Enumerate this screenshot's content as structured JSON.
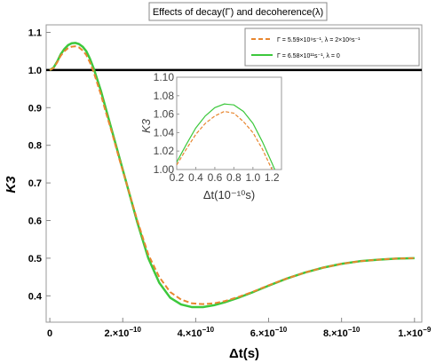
{
  "chart_data": {
    "type": "line",
    "title": "Effects of decay(Γ) and decoherence(λ)",
    "xlabel": "Δt(s)",
    "ylabel": "K3",
    "xlim": [
      -1e-11,
      1.02e-09
    ],
    "ylim": [
      0.33,
      1.12
    ],
    "x_ticks": [
      {
        "value": 0,
        "mant": "0",
        "exp": ""
      },
      {
        "value": 2e-10,
        "mant": "2.×10",
        "exp": "−10"
      },
      {
        "value": 4e-10,
        "mant": "4.×10",
        "exp": "−10"
      },
      {
        "value": 6e-10,
        "mant": "6.×10",
        "exp": "−10"
      },
      {
        "value": 8e-10,
        "mant": "8.×10",
        "exp": "−10"
      },
      {
        "value": 1e-09,
        "mant": "1.×10",
        "exp": "−9"
      }
    ],
    "y_ticks": [
      {
        "value": 0.4,
        "label": "0.4"
      },
      {
        "value": 0.5,
        "label": "0.5"
      },
      {
        "value": 0.6,
        "label": "0.6"
      },
      {
        "value": 0.7,
        "label": "0.7"
      },
      {
        "value": 0.8,
        "label": "0.8"
      },
      {
        "value": 0.9,
        "label": "0.9"
      },
      {
        "value": 1.0,
        "label": "1.0"
      },
      {
        "value": 1.1,
        "label": "1.1"
      }
    ],
    "reference_line": {
      "y": 1.0,
      "color": "#000000"
    },
    "legend_position": "top-right",
    "series": [
      {
        "name": "Γ = 5.59×10⁹s⁻¹, λ = 2×10⁸s⁻¹",
        "color": "#E8862F",
        "style": "dashed",
        "x": [
          0,
          1e-11,
          2e-11,
          3e-11,
          4e-11,
          5e-11,
          6e-11,
          7e-11,
          8e-11,
          9e-11,
          1e-10,
          1.1e-10,
          1.2e-10,
          1.3e-10,
          1.4e-10,
          1.5e-10,
          1.7e-10,
          1.9e-10,
          2.1e-10,
          2.4e-10,
          2.7e-10,
          3e-10,
          3.3e-10,
          3.6e-10,
          3.9e-10,
          4.2e-10,
          4.5e-10,
          4.8e-10,
          5.2e-10,
          5.6e-10,
          6e-10,
          6.5e-10,
          7e-10,
          7.5e-10,
          8e-10,
          8.5e-10,
          9e-10,
          9.5e-10,
          1e-09
        ],
        "values": [
          1.0,
          1.005,
          1.02,
          1.038,
          1.05,
          1.058,
          1.062,
          1.063,
          1.06,
          1.052,
          1.04,
          1.02,
          0.995,
          0.965,
          0.935,
          0.9,
          0.835,
          0.765,
          0.7,
          0.6,
          0.51,
          0.45,
          0.41,
          0.39,
          0.38,
          0.378,
          0.38,
          0.386,
          0.398,
          0.412,
          0.428,
          0.446,
          0.462,
          0.475,
          0.485,
          0.492,
          0.496,
          0.499,
          0.5
        ]
      },
      {
        "name": "Γ = 6.58×10¹¹s⁻¹, λ = 0",
        "color": "#3CC83C",
        "style": "solid",
        "x": [
          0,
          1e-11,
          2e-11,
          3e-11,
          4e-11,
          5e-11,
          6e-11,
          7e-11,
          8e-11,
          9e-11,
          1e-10,
          1.1e-10,
          1.2e-10,
          1.3e-10,
          1.4e-10,
          1.5e-10,
          1.7e-10,
          1.9e-10,
          2.1e-10,
          2.4e-10,
          2.7e-10,
          3e-10,
          3.3e-10,
          3.6e-10,
          3.9e-10,
          4.2e-10,
          4.5e-10,
          4.8e-10,
          5.2e-10,
          5.6e-10,
          6e-10,
          6.5e-10,
          7e-10,
          7.5e-10,
          8e-10,
          8.5e-10,
          9e-10,
          9.5e-10,
          1e-09
        ],
        "values": [
          1.0,
          1.006,
          1.022,
          1.042,
          1.056,
          1.066,
          1.071,
          1.072,
          1.069,
          1.062,
          1.05,
          1.03,
          1.005,
          0.975,
          0.945,
          0.91,
          0.84,
          0.77,
          0.7,
          0.595,
          0.5,
          0.435,
          0.395,
          0.377,
          0.37,
          0.37,
          0.375,
          0.383,
          0.396,
          0.411,
          0.427,
          0.446,
          0.462,
          0.475,
          0.485,
          0.492,
          0.496,
          0.499,
          0.5
        ]
      }
    ],
    "inset": {
      "xlabel": "Δt(10⁻¹⁰s)",
      "ylabel": "K3",
      "xlim": [
        0.2,
        1.3
      ],
      "ylim": [
        1.0,
        1.1
      ],
      "x_ticks": [
        {
          "value": 0.2,
          "label": "0.2"
        },
        {
          "value": 0.4,
          "label": "0.4"
        },
        {
          "value": 0.6,
          "label": "0.6"
        },
        {
          "value": 0.8,
          "label": "0.8"
        },
        {
          "value": 1.0,
          "label": "1.0"
        },
        {
          "value": 1.2,
          "label": "1.2"
        }
      ],
      "y_ticks": [
        {
          "value": 1.0,
          "label": "1.00"
        },
        {
          "value": 1.02,
          "label": "1.02"
        },
        {
          "value": 1.04,
          "label": "1.04"
        },
        {
          "value": 1.06,
          "label": "1.06"
        },
        {
          "value": 1.08,
          "label": "1.08"
        },
        {
          "value": 1.1,
          "label": "1.10"
        }
      ],
      "series": [
        {
          "color": "#E8862F",
          "style": "dashed",
          "x": [
            0.2,
            0.3,
            0.4,
            0.5,
            0.6,
            0.7,
            0.8,
            0.9,
            1.0,
            1.1,
            1.2,
            1.25,
            1.3
          ],
          "values": [
            1.005,
            1.022,
            1.038,
            1.05,
            1.058,
            1.063,
            1.061,
            1.052,
            1.04,
            1.022,
            1.0,
            0.99,
            0.98
          ]
        },
        {
          "color": "#3CC83C",
          "style": "solid",
          "x": [
            0.2,
            0.3,
            0.4,
            0.5,
            0.6,
            0.7,
            0.8,
            0.9,
            1.0,
            1.1,
            1.2,
            1.25,
            1.3
          ],
          "values": [
            1.008,
            1.027,
            1.045,
            1.058,
            1.067,
            1.071,
            1.07,
            1.063,
            1.05,
            1.03,
            1.007,
            0.995,
            0.985
          ]
        }
      ]
    }
  }
}
